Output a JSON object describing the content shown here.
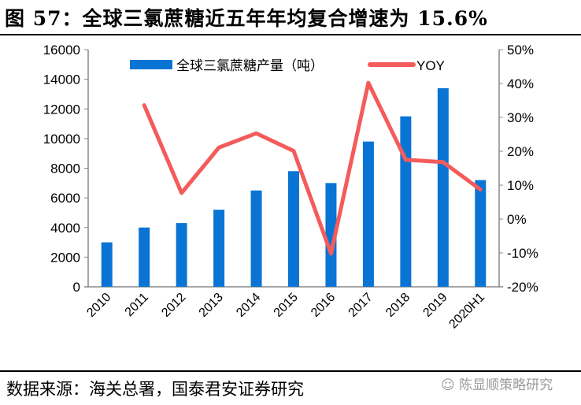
{
  "title": "图 57：全球三氯蔗糖近五年年均复合增速为 15.6%",
  "source": "数据来源：海关总署，国泰君安证券研究",
  "watermark": "陈显顺策略研究",
  "chart_data": {
    "type": "bar+line",
    "categories": [
      "2010",
      "2011",
      "2012",
      "2013",
      "2014",
      "2015",
      "2016",
      "2017",
      "2018",
      "2019",
      "2020H1"
    ],
    "series": [
      {
        "name": "全球三氯蔗糖产量（吨）",
        "type": "bar",
        "axis": "left",
        "color": "#0a74d4",
        "values": [
          3000,
          4000,
          4300,
          5200,
          6500,
          7800,
          7000,
          9800,
          11500,
          13400,
          7200
        ]
      },
      {
        "name": "YOY",
        "type": "line",
        "axis": "right",
        "color": "#f45b5b",
        "values": [
          null,
          33.6,
          7.7,
          21.1,
          25.3,
          20.1,
          -10.2,
          40.2,
          17.5,
          16.8,
          8.7
        ]
      }
    ],
    "left_axis": {
      "ylim": [
        0,
        16000
      ],
      "ticks": [
        "0",
        "2000",
        "4000",
        "6000",
        "8000",
        "10000",
        "12000",
        "14000",
        "16000"
      ]
    },
    "right_axis": {
      "ylim": [
        -20,
        50
      ],
      "ticks": [
        "-20%",
        "-10%",
        "0%",
        "10%",
        "20%",
        "30%",
        "40%",
        "50%"
      ]
    },
    "legend": "top"
  }
}
